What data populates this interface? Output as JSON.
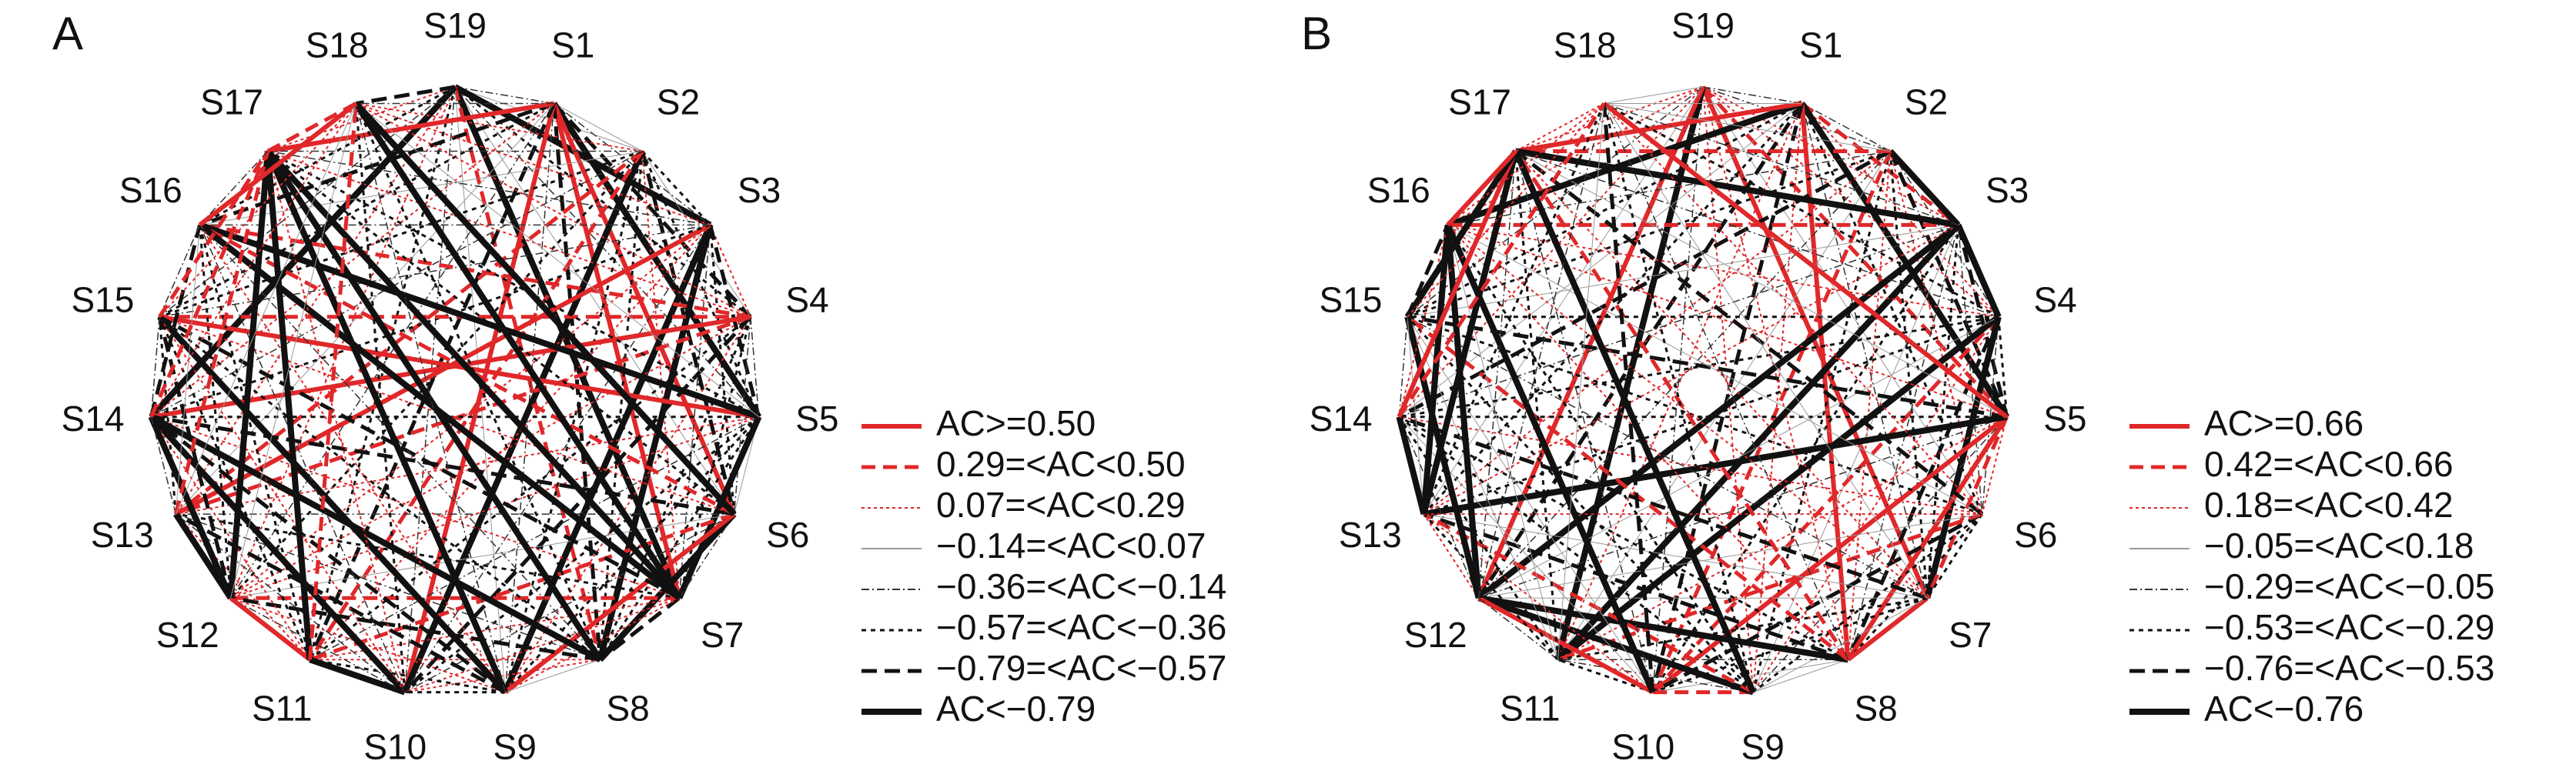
{
  "panels": [
    {
      "label": "A",
      "nodes": [
        "S19",
        "S1",
        "S2",
        "S3",
        "S4",
        "S5",
        "S6",
        "S7",
        "S8",
        "S9",
        "S10",
        "S11",
        "S12",
        "S13",
        "S14",
        "S15",
        "S16",
        "S17",
        "S18"
      ],
      "legend": [
        "AC>=0.50",
        "0.29=<AC<0.50",
        "0.07=<AC<0.29",
        "−0.14=<AC<0.07",
        "−0.36=<AC<−0.14",
        "−0.57=<AC<−0.36",
        "−0.79=<AC<−0.57",
        "AC<−0.79"
      ]
    },
    {
      "label": "B",
      "nodes": [
        "S19",
        "S1",
        "S2",
        "S3",
        "S4",
        "S5",
        "S6",
        "S7",
        "S8",
        "S9",
        "S10",
        "S11",
        "S12",
        "S13",
        "S14",
        "S15",
        "S16",
        "S17",
        "S18"
      ],
      "legend": [
        "AC>=0.66",
        "0.42=<AC<0.66",
        "0.18=<AC<0.42",
        "−0.05=<AC<0.18",
        "−0.29=<AC<−0.05",
        "−0.53=<AC<−0.29",
        "−0.76=<AC<−0.53",
        "AC<−0.76"
      ]
    }
  ]
}
